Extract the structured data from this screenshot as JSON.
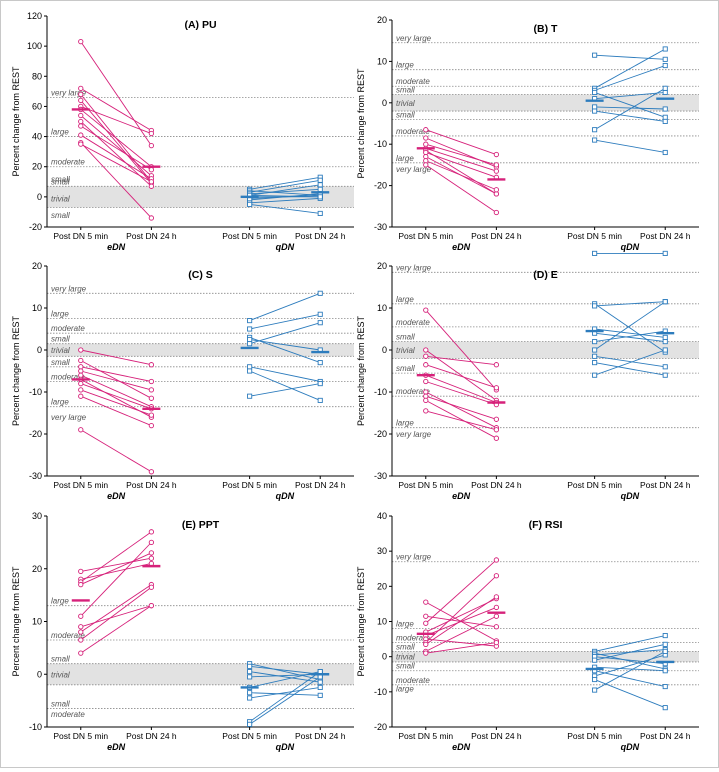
{
  "chart_data": [
    {
      "type": "scatter",
      "title": "(A) PU",
      "ylabel": "Percent change from REST",
      "ylim": [
        -20,
        120
      ],
      "yticks": [
        -20,
        0,
        20,
        40,
        60,
        80,
        100,
        120
      ],
      "categories": [
        "Post DN 5 min",
        "Post DN 24 h",
        "Post DN 5 min",
        "Post DN 24 h"
      ],
      "group_labels": [
        "eDN",
        "qDN"
      ],
      "trivial_band": [
        -7,
        7
      ],
      "reference_lines": [
        {
          "value": 66,
          "label": "very large"
        },
        {
          "value": 40,
          "label": "large"
        },
        {
          "value": 20,
          "label": "moderate"
        },
        {
          "value": 7,
          "label": "small"
        },
        {
          "value": -7,
          "label": ""
        }
      ],
      "band_labels": [
        {
          "y": 12,
          "text": "small"
        },
        {
          "y": -1,
          "text": "trivial"
        },
        {
          "y": -12,
          "text": "small"
        }
      ],
      "series": [
        {
          "group": "eDN",
          "color": "#d6217a",
          "marker": "circle",
          "pairs": [
            [
              103,
              34
            ],
            [
              72,
              44
            ],
            [
              68,
              10
            ],
            [
              64,
              9
            ],
            [
              60,
              42
            ],
            [
              58,
              20
            ],
            [
              54,
              14
            ],
            [
              50,
              7
            ],
            [
              47,
              18
            ],
            [
              41,
              12
            ],
            [
              36,
              -14
            ],
            [
              35,
              10
            ]
          ],
          "means": [
            58,
            20
          ]
        },
        {
          "group": "qDN",
          "color": "#2d7cbd",
          "marker": "square",
          "pairs": [
            [
              5,
              13
            ],
            [
              4,
              1
            ],
            [
              3,
              11
            ],
            [
              2,
              5
            ],
            [
              1,
              8
            ],
            [
              0,
              0
            ],
            [
              -1,
              1
            ],
            [
              -2,
              2
            ],
            [
              -4,
              -1
            ],
            [
              -5,
              -11
            ],
            [
              1,
              0
            ]
          ],
          "means": [
            0,
            3
          ]
        }
      ]
    },
    {
      "type": "scatter",
      "title": "(B) T",
      "ylabel": "Percent change from REST",
      "ylim": [
        -30,
        20
      ],
      "yticks": [
        -30,
        -20,
        -10,
        0,
        10,
        20
      ],
      "categories": [
        "Post DN 5 min",
        "Post DN 24 h",
        "Post DN 5 min",
        "Post DN 24 h"
      ],
      "group_labels": [
        "eDN",
        "qDN"
      ],
      "trivial_band": [
        -2,
        2
      ],
      "reference_lines": [
        {
          "value": 14.5,
          "label": "very large"
        },
        {
          "value": 8,
          "label": "large"
        },
        {
          "value": 4,
          "label": "moderate"
        },
        {
          "value": 2,
          "label": "small"
        },
        {
          "value": -2,
          "label": ""
        },
        {
          "value": -4,
          "label": "small"
        },
        {
          "value": -8,
          "label": "moderate"
        },
        {
          "value": -14.5,
          "label": "large"
        }
      ],
      "band_labels": [
        {
          "y": 0,
          "text": "trivial"
        },
        {
          "y": -16,
          "text": "very large"
        }
      ],
      "series": [
        {
          "group": "eDN",
          "color": "#d6217a",
          "marker": "circle",
          "pairs": [
            [
              -6.5,
              -12.5
            ],
            [
              -8.5,
              -15.5
            ],
            [
              -10,
              -15
            ],
            [
              -11,
              -16.5
            ],
            [
              -11.5,
              -22
            ],
            [
              -12,
              -18
            ],
            [
              -13,
              -22
            ],
            [
              -14,
              -21
            ],
            [
              -15,
              -26.5
            ]
          ],
          "means": [
            -11,
            -18.5
          ]
        },
        {
          "group": "qDN",
          "color": "#2d7cbd",
          "marker": "square",
          "pairs": [
            [
              11.5,
              10.5
            ],
            [
              3.5,
              13
            ],
            [
              3,
              9
            ],
            [
              2.5,
              -3.5
            ],
            [
              1,
              2.5
            ],
            [
              -1,
              -1.5
            ],
            [
              -2,
              -4.5
            ],
            [
              -6.5,
              3.5
            ],
            [
              -9,
              -12
            ]
          ],
          "means": [
            0.5,
            1
          ]
        }
      ]
    },
    {
      "type": "scatter",
      "title": "(C) S",
      "ylabel": "Percent change from REST",
      "ylim": [
        -30,
        20
      ],
      "yticks": [
        -30,
        -20,
        -10,
        0,
        10,
        20
      ],
      "categories": [
        "Post DN 5 min",
        "Post DN 24 h",
        "Post DN 5 min",
        "Post DN 24 h"
      ],
      "group_labels": [
        "eDN",
        "qDN"
      ],
      "trivial_band": [
        -1.5,
        1.5
      ],
      "reference_lines": [
        {
          "value": 13.5,
          "label": "very large"
        },
        {
          "value": 7.5,
          "label": "large"
        },
        {
          "value": 4,
          "label": "moderate"
        },
        {
          "value": 1.5,
          "label": "small"
        },
        {
          "value": -1.5,
          "label": ""
        },
        {
          "value": -4,
          "label": "small"
        },
        {
          "value": -7.5,
          "label": "moderate"
        },
        {
          "value": -13.5,
          "label": "large"
        }
      ],
      "band_labels": [
        {
          "y": 0,
          "text": "trivial"
        },
        {
          "y": -16,
          "text": "very large"
        }
      ],
      "series": [
        {
          "group": "eDN",
          "color": "#d6217a",
          "marker": "circle",
          "pairs": [
            [
              0,
              -3.5
            ],
            [
              -2.5,
              -11.5
            ],
            [
              -4,
              -7.5
            ],
            [
              -5,
              -9.5
            ],
            [
              -6,
              -13.5
            ],
            [
              -7,
              -16
            ],
            [
              -8,
              -14
            ],
            [
              -9.5,
              -15.5
            ],
            [
              -11,
              -18
            ],
            [
              -19,
              -29
            ]
          ],
          "means": [
            -7,
            -14
          ]
        },
        {
          "group": "qDN",
          "color": "#2d7cbd",
          "marker": "square",
          "pairs": [
            [
              7,
              13.5
            ],
            [
              5,
              8.5
            ],
            [
              3,
              -3
            ],
            [
              2.5,
              0
            ],
            [
              1.5,
              6.5
            ],
            [
              -4,
              -7.5
            ],
            [
              -5,
              -12
            ],
            [
              -11,
              -8
            ]
          ],
          "means": [
            0.5,
            -0.5
          ]
        }
      ]
    },
    {
      "type": "scatter",
      "title": "(D) E",
      "ylabel": "Percent change from REST",
      "ylim": [
        -30,
        20
      ],
      "yticks": [
        -30,
        -20,
        -10,
        0,
        10,
        20
      ],
      "categories": [
        "Post DN 5 min",
        "Post DN 24 h",
        "Post DN 5 min",
        "Post DN 24 h"
      ],
      "group_labels": [
        "eDN",
        "qDN"
      ],
      "trivial_band": [
        -2,
        2
      ],
      "reference_lines": [
        {
          "value": 18.5,
          "label": "very large"
        },
        {
          "value": 11,
          "label": "large"
        },
        {
          "value": 5.5,
          "label": "moderate"
        },
        {
          "value": 2,
          "label": "small"
        },
        {
          "value": -2,
          "label": ""
        },
        {
          "value": -5.5,
          "label": "small"
        },
        {
          "value": -11,
          "label": "moderate"
        },
        {
          "value": -18.5,
          "label": "large"
        }
      ],
      "band_labels": [
        {
          "y": 0,
          "text": "trivial"
        },
        {
          "y": -20,
          "text": "very large"
        }
      ],
      "series": [
        {
          "group": "eDN",
          "color": "#d6217a",
          "marker": "circle",
          "pairs": [
            [
              9.5,
              -9.5
            ],
            [
              0,
              -12
            ],
            [
              -1.5,
              -3.5
            ],
            [
              -3.5,
              -9
            ],
            [
              -6,
              -12.5
            ],
            [
              -7.5,
              -13
            ],
            [
              -10,
              -18.5
            ],
            [
              -11,
              -16.5
            ],
            [
              -12,
              -21
            ],
            [
              -14.5,
              -19
            ]
          ],
          "means": [
            -6,
            -12.5
          ]
        },
        {
          "group": "qDN",
          "color": "#2d7cbd",
          "marker": "square",
          "pairs": [
            [
              23,
              23
            ],
            [
              11,
              -0.5
            ],
            [
              10.5,
              11.5
            ],
            [
              5,
              3
            ],
            [
              4,
              2
            ],
            [
              2,
              4.5
            ],
            [
              0,
              11.5
            ],
            [
              -1.5,
              -4
            ],
            [
              -3,
              -6
            ],
            [
              -6,
              0
            ]
          ],
          "means": [
            4.5,
            4
          ]
        }
      ]
    },
    {
      "type": "scatter",
      "title": "(E) PPT",
      "ylabel": "Percent change from REST",
      "ylim": [
        -10,
        30
      ],
      "yticks": [
        -10,
        0,
        10,
        20,
        30
      ],
      "categories": [
        "Post DN 5 min",
        "Post DN 24 h",
        "Post DN 5 min",
        "Post DN 24 h"
      ],
      "group_labels": [
        "eDN",
        "qDN"
      ],
      "trivial_band": [
        -2,
        2
      ],
      "reference_lines": [
        {
          "value": 13,
          "label": "large"
        },
        {
          "value": 6.5,
          "label": "moderate"
        },
        {
          "value": 2,
          "label": "small"
        },
        {
          "value": -2,
          "label": ""
        },
        {
          "value": -6.5,
          "label": "small"
        }
      ],
      "band_labels": [
        {
          "y": 0,
          "text": "trivial"
        },
        {
          "y": -7.5,
          "text": "moderate"
        }
      ],
      "series": [
        {
          "group": "eDN",
          "color": "#d6217a",
          "marker": "circle",
          "pairs": [
            [
              19.5,
              22
            ],
            [
              18,
              21
            ],
            [
              17.5,
              27
            ],
            [
              17,
              23
            ],
            [
              11,
              25
            ],
            [
              9,
              13
            ],
            [
              8,
              17
            ],
            [
              6.5,
              16.5
            ],
            [
              4,
              13
            ]
          ],
          "means": [
            14,
            20.5
          ]
        },
        {
          "group": "qDN",
          "color": "#2d7cbd",
          "marker": "square",
          "pairs": [
            [
              2,
              -1
            ],
            [
              1.5,
              0
            ],
            [
              0.5,
              -1.5
            ],
            [
              -0.5,
              0
            ],
            [
              -2.5,
              0.5
            ],
            [
              -3.5,
              -4
            ],
            [
              -4.5,
              -2.5
            ],
            [
              -9,
              0.5
            ],
            [
              -9.5,
              -0.5
            ]
          ],
          "means": [
            -2.5,
            0
          ]
        }
      ]
    },
    {
      "type": "scatter",
      "title": "(F) RSI",
      "ylabel": "Percent change from REST",
      "ylim": [
        -20,
        40
      ],
      "yticks": [
        -20,
        -10,
        0,
        10,
        20,
        30,
        40
      ],
      "categories": [
        "Post DN 5 min",
        "Post DN 24 h",
        "Post DN 5 min",
        "Post DN 24 h"
      ],
      "group_labels": [
        "eDN",
        "qDN"
      ],
      "trivial_band": [
        -1.5,
        1.5
      ],
      "reference_lines": [
        {
          "value": 27,
          "label": "very large"
        },
        {
          "value": 8,
          "label": "large"
        },
        {
          "value": 4,
          "label": "moderate"
        },
        {
          "value": 1.5,
          "label": "small"
        },
        {
          "value": -1.5,
          "label": ""
        },
        {
          "value": -4,
          "label": "small"
        },
        {
          "value": -8,
          "label": "moderate"
        }
      ],
      "band_labels": [
        {
          "y": 0,
          "text": "trivial"
        },
        {
          "y": -9,
          "text": "large"
        }
      ],
      "series": [
        {
          "group": "eDN",
          "color": "#d6217a",
          "marker": "circle",
          "pairs": [
            [
              15.5,
              4.5
            ],
            [
              11.5,
              8.5
            ],
            [
              9.5,
              27.5
            ],
            [
              7,
              16.5
            ],
            [
              6,
              14
            ],
            [
              5,
              3
            ],
            [
              4,
              23
            ],
            [
              3.5,
              17
            ],
            [
              1.5,
              11.5
            ],
            [
              1,
              4
            ]
          ],
          "means": [
            6.5,
            12.5
          ]
        },
        {
          "group": "qDN",
          "color": "#2d7cbd",
          "marker": "square",
          "pairs": [
            [
              1.5,
              6
            ],
            [
              1,
              -3.5
            ],
            [
              0.5,
              2
            ],
            [
              0,
              -2
            ],
            [
              -1,
              3.5
            ],
            [
              -3,
              -4
            ],
            [
              -4,
              -8.5
            ],
            [
              -5.5,
              0.5
            ],
            [
              -6.5,
              -14.5
            ],
            [
              -9.5,
              1.5
            ]
          ],
          "means": [
            -3.5,
            -1.5
          ]
        }
      ]
    }
  ]
}
